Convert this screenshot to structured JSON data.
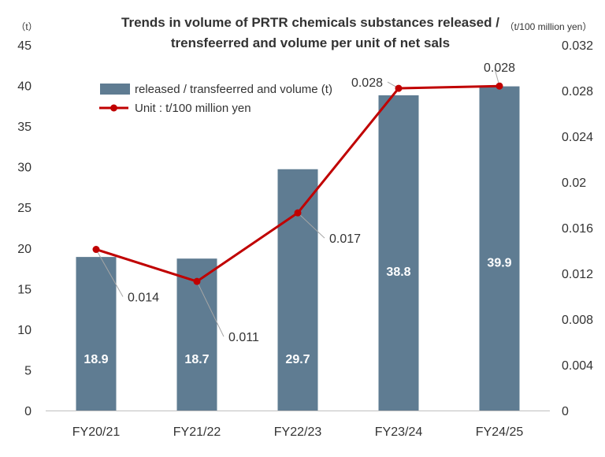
{
  "chart_data": {
    "type": "bar",
    "title_line1": "Trends in volume of PRTR chemicals substances released /",
    "title_line2": "trensfeerred and volume per unit of net sals",
    "left_unit": "（t）",
    "right_unit": "（t/100 million yen）",
    "categories": [
      "FY20/21",
      "FY21/22",
      "FY22/23",
      "FY23/24",
      "FY24/25"
    ],
    "y_left": {
      "min": 0,
      "max": 45,
      "step": 5,
      "ticks": [
        "0",
        "5",
        "10",
        "15",
        "20",
        "25",
        "30",
        "35",
        "40",
        "45"
      ]
    },
    "y_right": {
      "min": 0,
      "max": 0.032,
      "step": 0.004,
      "ticks": [
        "0",
        "0.004",
        "0.008",
        "0.012",
        "0.016",
        "0.02",
        "0.024",
        "0.028",
        "0.032"
      ]
    },
    "series": [
      {
        "name": "released / transfeerred and volume (t)",
        "type": "bar",
        "axis": "left",
        "color": "#5f7c92",
        "values": [
          18.9,
          18.7,
          29.7,
          38.8,
          39.9
        ],
        "labels": [
          "18.9",
          "18.7",
          "29.7",
          "38.8",
          "39.9"
        ]
      },
      {
        "name": "Unit : t/100 million yen",
        "type": "line",
        "axis": "right",
        "color": "#c00000",
        "values": [
          0.0141,
          0.0113,
          0.0173,
          0.0282,
          0.0284
        ],
        "labels": [
          "0.014",
          "0.011",
          "0.017",
          "0.028",
          "0.028"
        ]
      }
    ],
    "legend_position": "top-left",
    "grid": false
  }
}
